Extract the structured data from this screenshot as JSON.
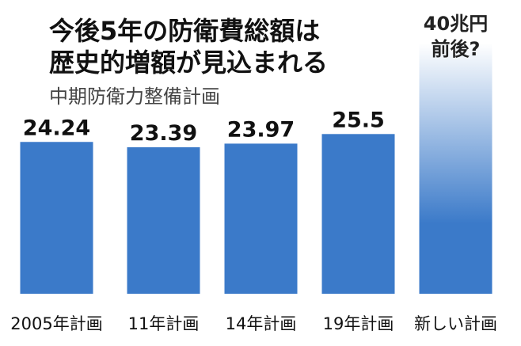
{
  "title_lines": [
    "今後5年の防衛費総額は",
    "歴史的増額が見込まれる"
  ],
  "subtitle": "中期防衛力整備計画",
  "colors": {
    "bar": "#3b7ac9",
    "gradient_top": "#ffffff",
    "text": "#111111"
  },
  "chart_data": {
    "type": "bar",
    "title": "今後5年の防衛費総額は歴史的増額が見込まれる",
    "subtitle": "中期防衛力整備計画",
    "categories": [
      "2005年計画",
      "11年計画",
      "14年計画",
      "19年計画",
      "新しい計画"
    ],
    "values": [
      24.24,
      23.39,
      23.97,
      25.5,
      40
    ],
    "value_labels": [
      "24.24",
      "23.39",
      "23.97",
      "25.5",
      ""
    ],
    "future_label_lines": [
      "40兆円",
      "前後?"
    ],
    "future_bar_index": 4,
    "ylim": [
      0,
      40
    ],
    "grid": false,
    "legend": "none"
  }
}
